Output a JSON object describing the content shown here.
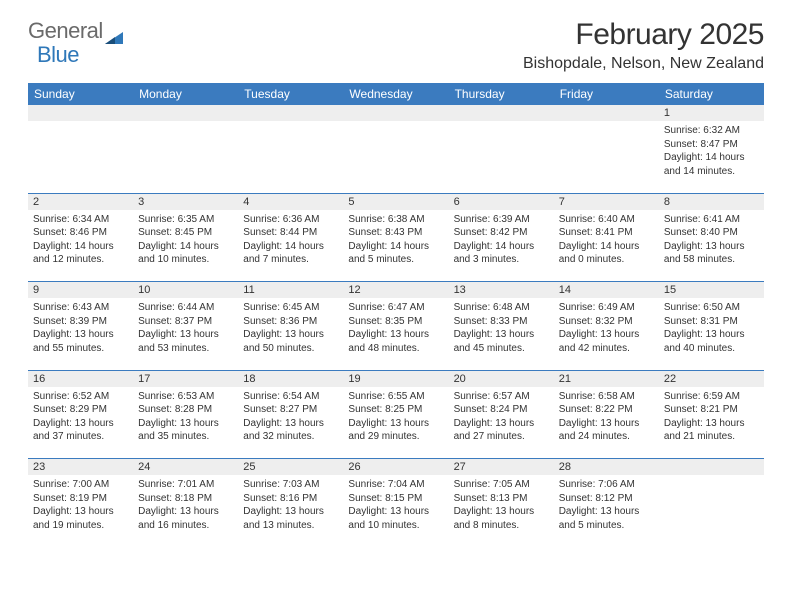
{
  "logo": {
    "text_general": "General",
    "text_blue": "Blue"
  },
  "title": "February 2025",
  "subtitle": "Bishopdale, Nelson, New Zealand",
  "colors": {
    "header_bg": "#3b7bbf",
    "header_text": "#ffffff",
    "daynum_bg": "#eeeeee",
    "border": "#3b7bbf",
    "text": "#333333",
    "logo_gray": "#6a6a6a",
    "logo_blue": "#2f78b9",
    "background": "#ffffff"
  },
  "fonts": {
    "title_size_pt": 22,
    "subtitle_size_pt": 12,
    "header_size_pt": 9,
    "body_size_pt": 7.5
  },
  "day_headers": [
    "Sunday",
    "Monday",
    "Tuesday",
    "Wednesday",
    "Thursday",
    "Friday",
    "Saturday"
  ],
  "weeks": [
    [
      null,
      null,
      null,
      null,
      null,
      null,
      {
        "num": "1",
        "sunrise": "Sunrise: 6:32 AM",
        "sunset": "Sunset: 8:47 PM",
        "daylight": "Daylight: 14 hours and 14 minutes."
      }
    ],
    [
      {
        "num": "2",
        "sunrise": "Sunrise: 6:34 AM",
        "sunset": "Sunset: 8:46 PM",
        "daylight": "Daylight: 14 hours and 12 minutes."
      },
      {
        "num": "3",
        "sunrise": "Sunrise: 6:35 AM",
        "sunset": "Sunset: 8:45 PM",
        "daylight": "Daylight: 14 hours and 10 minutes."
      },
      {
        "num": "4",
        "sunrise": "Sunrise: 6:36 AM",
        "sunset": "Sunset: 8:44 PM",
        "daylight": "Daylight: 14 hours and 7 minutes."
      },
      {
        "num": "5",
        "sunrise": "Sunrise: 6:38 AM",
        "sunset": "Sunset: 8:43 PM",
        "daylight": "Daylight: 14 hours and 5 minutes."
      },
      {
        "num": "6",
        "sunrise": "Sunrise: 6:39 AM",
        "sunset": "Sunset: 8:42 PM",
        "daylight": "Daylight: 14 hours and 3 minutes."
      },
      {
        "num": "7",
        "sunrise": "Sunrise: 6:40 AM",
        "sunset": "Sunset: 8:41 PM",
        "daylight": "Daylight: 14 hours and 0 minutes."
      },
      {
        "num": "8",
        "sunrise": "Sunrise: 6:41 AM",
        "sunset": "Sunset: 8:40 PM",
        "daylight": "Daylight: 13 hours and 58 minutes."
      }
    ],
    [
      {
        "num": "9",
        "sunrise": "Sunrise: 6:43 AM",
        "sunset": "Sunset: 8:39 PM",
        "daylight": "Daylight: 13 hours and 55 minutes."
      },
      {
        "num": "10",
        "sunrise": "Sunrise: 6:44 AM",
        "sunset": "Sunset: 8:37 PM",
        "daylight": "Daylight: 13 hours and 53 minutes."
      },
      {
        "num": "11",
        "sunrise": "Sunrise: 6:45 AM",
        "sunset": "Sunset: 8:36 PM",
        "daylight": "Daylight: 13 hours and 50 minutes."
      },
      {
        "num": "12",
        "sunrise": "Sunrise: 6:47 AM",
        "sunset": "Sunset: 8:35 PM",
        "daylight": "Daylight: 13 hours and 48 minutes."
      },
      {
        "num": "13",
        "sunrise": "Sunrise: 6:48 AM",
        "sunset": "Sunset: 8:33 PM",
        "daylight": "Daylight: 13 hours and 45 minutes."
      },
      {
        "num": "14",
        "sunrise": "Sunrise: 6:49 AM",
        "sunset": "Sunset: 8:32 PM",
        "daylight": "Daylight: 13 hours and 42 minutes."
      },
      {
        "num": "15",
        "sunrise": "Sunrise: 6:50 AM",
        "sunset": "Sunset: 8:31 PM",
        "daylight": "Daylight: 13 hours and 40 minutes."
      }
    ],
    [
      {
        "num": "16",
        "sunrise": "Sunrise: 6:52 AM",
        "sunset": "Sunset: 8:29 PM",
        "daylight": "Daylight: 13 hours and 37 minutes."
      },
      {
        "num": "17",
        "sunrise": "Sunrise: 6:53 AM",
        "sunset": "Sunset: 8:28 PM",
        "daylight": "Daylight: 13 hours and 35 minutes."
      },
      {
        "num": "18",
        "sunrise": "Sunrise: 6:54 AM",
        "sunset": "Sunset: 8:27 PM",
        "daylight": "Daylight: 13 hours and 32 minutes."
      },
      {
        "num": "19",
        "sunrise": "Sunrise: 6:55 AM",
        "sunset": "Sunset: 8:25 PM",
        "daylight": "Daylight: 13 hours and 29 minutes."
      },
      {
        "num": "20",
        "sunrise": "Sunrise: 6:57 AM",
        "sunset": "Sunset: 8:24 PM",
        "daylight": "Daylight: 13 hours and 27 minutes."
      },
      {
        "num": "21",
        "sunrise": "Sunrise: 6:58 AM",
        "sunset": "Sunset: 8:22 PM",
        "daylight": "Daylight: 13 hours and 24 minutes."
      },
      {
        "num": "22",
        "sunrise": "Sunrise: 6:59 AM",
        "sunset": "Sunset: 8:21 PM",
        "daylight": "Daylight: 13 hours and 21 minutes."
      }
    ],
    [
      {
        "num": "23",
        "sunrise": "Sunrise: 7:00 AM",
        "sunset": "Sunset: 8:19 PM",
        "daylight": "Daylight: 13 hours and 19 minutes."
      },
      {
        "num": "24",
        "sunrise": "Sunrise: 7:01 AM",
        "sunset": "Sunset: 8:18 PM",
        "daylight": "Daylight: 13 hours and 16 minutes."
      },
      {
        "num": "25",
        "sunrise": "Sunrise: 7:03 AM",
        "sunset": "Sunset: 8:16 PM",
        "daylight": "Daylight: 13 hours and 13 minutes."
      },
      {
        "num": "26",
        "sunrise": "Sunrise: 7:04 AM",
        "sunset": "Sunset: 8:15 PM",
        "daylight": "Daylight: 13 hours and 10 minutes."
      },
      {
        "num": "27",
        "sunrise": "Sunrise: 7:05 AM",
        "sunset": "Sunset: 8:13 PM",
        "daylight": "Daylight: 13 hours and 8 minutes."
      },
      {
        "num": "28",
        "sunrise": "Sunrise: 7:06 AM",
        "sunset": "Sunset: 8:12 PM",
        "daylight": "Daylight: 13 hours and 5 minutes."
      },
      null
    ]
  ]
}
